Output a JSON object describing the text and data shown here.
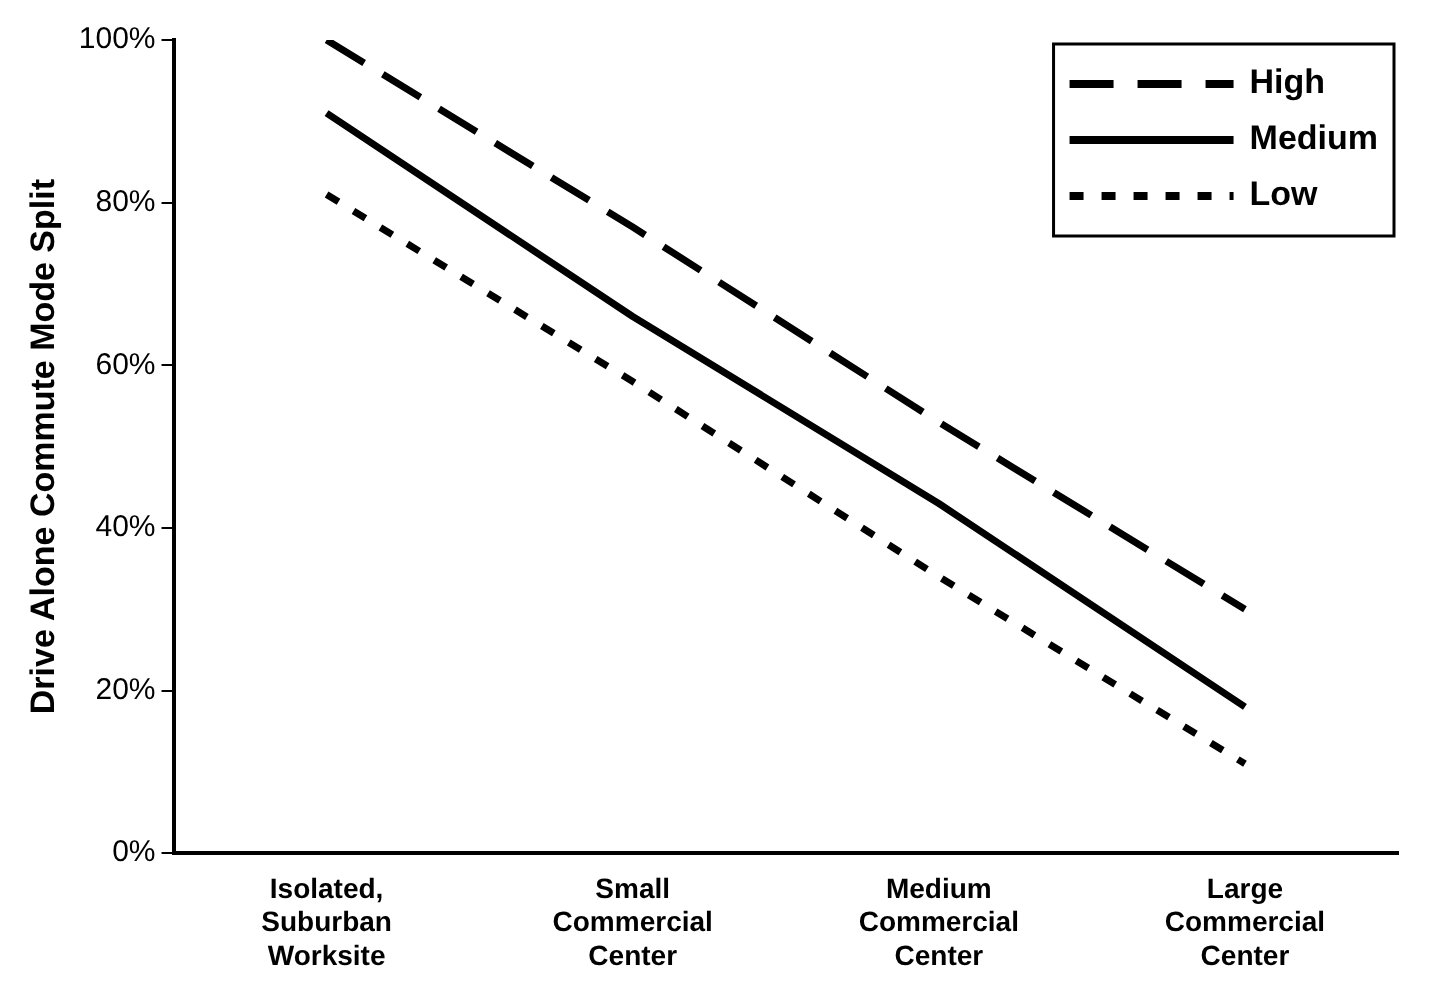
{
  "chart_data": {
    "type": "line",
    "ylabel": "Drive Alone Commute Mode Split",
    "categories": [
      "Isolated,\nSuburban\nWorksite",
      "Small\nCommercial\nCenter",
      "Medium\nCommercial\nCenter",
      "Large\nCommercial\nCenter"
    ],
    "series": [
      {
        "name": "High",
        "color": "#000000",
        "line_style": "dashed",
        "values": [
          100,
          77,
          53,
          30
        ]
      },
      {
        "name": "Medium",
        "color": "#000000",
        "line_style": "solid",
        "values": [
          91,
          66,
          43,
          18
        ]
      },
      {
        "name": "Low",
        "color": "#000000",
        "line_style": "dotted",
        "values": [
          81,
          58,
          34,
          11
        ]
      }
    ],
    "ylim": [
      0,
      100
    ],
    "yticks": [
      {
        "value": 0,
        "label": "0%"
      },
      {
        "value": 20,
        "label": "20%"
      },
      {
        "value": 40,
        "label": "40%"
      },
      {
        "value": 60,
        "label": "60%"
      },
      {
        "value": 80,
        "label": "80%"
      },
      {
        "value": 100,
        "label": "100%"
      }
    ],
    "grid": false,
    "legend": "top right",
    "marker": "none"
  }
}
